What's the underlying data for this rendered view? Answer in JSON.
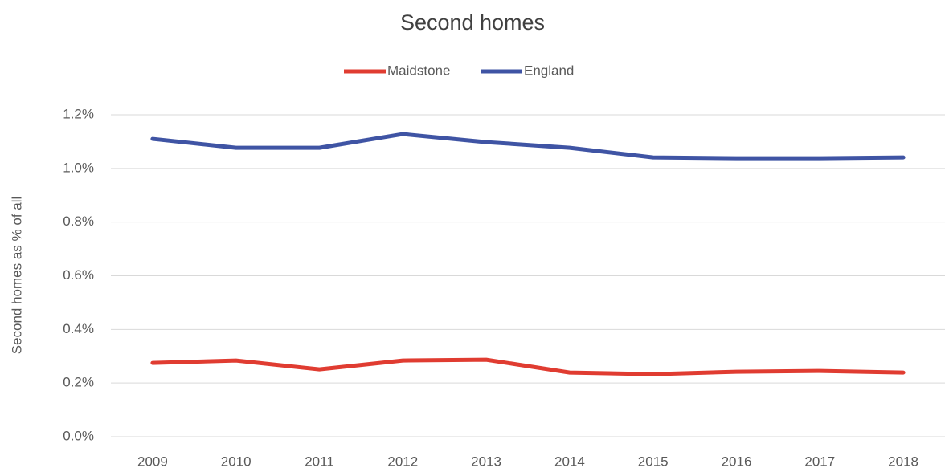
{
  "chart_data": {
    "type": "line",
    "title": "Second homes",
    "y_label": "Second homes as % of all",
    "categories": [
      "2009",
      "2010",
      "2011",
      "2012",
      "2013",
      "2014",
      "2015",
      "2016",
      "2017",
      "2018"
    ],
    "series": [
      {
        "name": "Maidstone",
        "color": "#e03c31",
        "values": [
          0.275,
          0.284,
          0.251,
          0.284,
          0.287,
          0.239,
          0.233,
          0.242,
          0.245,
          0.239
        ]
      },
      {
        "name": "England",
        "color": "#3f54a4",
        "values": [
          1.11,
          1.077,
          1.077,
          1.128,
          1.098,
          1.077,
          1.041,
          1.038,
          1.038,
          1.041
        ]
      }
    ],
    "ylim": [
      0,
      1.2
    ],
    "yticks": [
      {
        "value": 0,
        "label": "0.0%"
      },
      {
        "value": 0.2,
        "label": "0.2%"
      },
      {
        "value": 0.4,
        "label": "0.4%"
      },
      {
        "value": 0.6,
        "label": "0.6%"
      },
      {
        "value": 0.8,
        "label": "0.8%"
      },
      {
        "value": 1.0,
        "label": "1.0%"
      },
      {
        "value": 1.2,
        "label": "1.2%"
      }
    ],
    "grid": true,
    "legend": "top"
  }
}
